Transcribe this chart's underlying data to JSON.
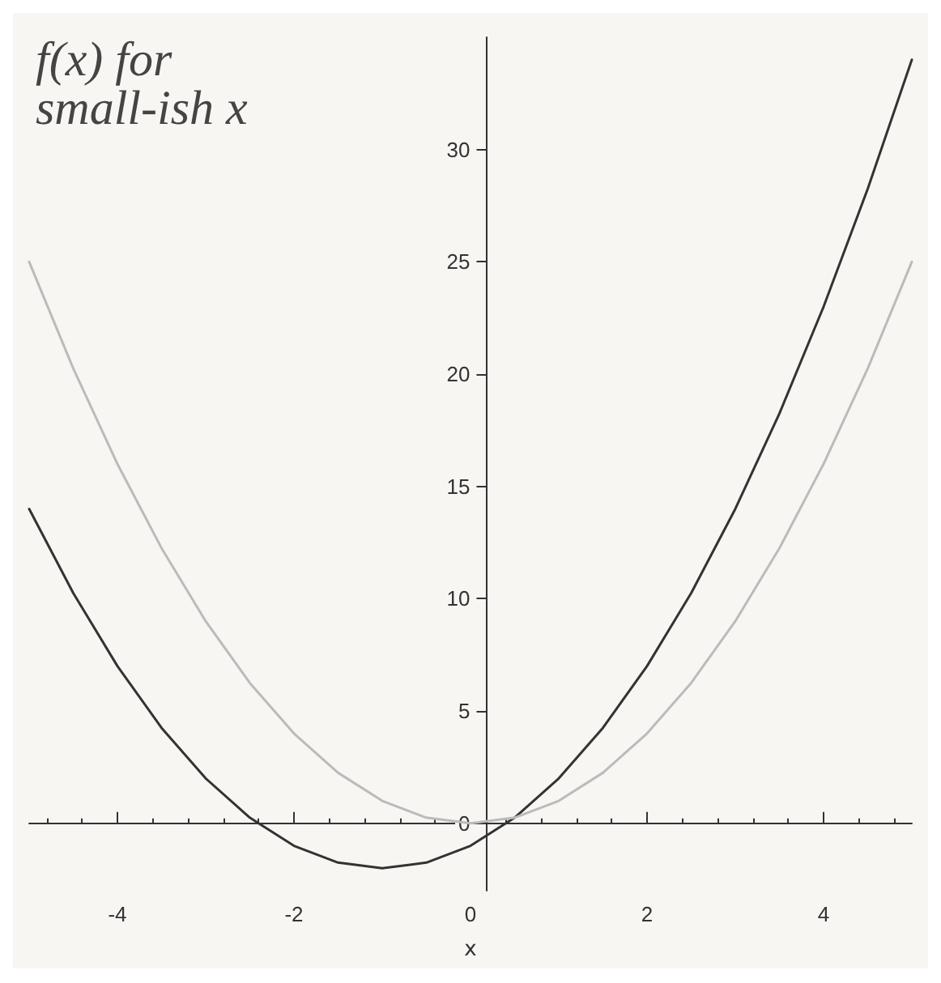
{
  "chart_data": {
    "type": "line",
    "xlabel": "x",
    "annotations": [
      "f(x) for small-ish x"
    ],
    "x": [
      -5,
      -4.5,
      -4,
      -3.5,
      -3,
      -2.5,
      -2,
      -1.5,
      -1,
      -0.5,
      0,
      0.5,
      1,
      1.5,
      2,
      2.5,
      3,
      3.5,
      4,
      4.5,
      5
    ],
    "series": [
      {
        "color": "#333333",
        "values": [
          14,
          10.25,
          7,
          4.25,
          2,
          0.25,
          -1,
          -1.75,
          -2,
          -1.75,
          -1,
          0.25,
          2,
          4.25,
          7,
          10.25,
          14,
          18.25,
          23,
          28.25,
          34
        ]
      },
      {
        "color": "#bbbbbb",
        "values": [
          25,
          20.25,
          16,
          12.25,
          9,
          6.25,
          4,
          2.25,
          1,
          0.25,
          0,
          0.25,
          1,
          2.25,
          4,
          6.25,
          9,
          12.25,
          16,
          20.25,
          25
        ]
      }
    ],
    "xlim": [
      -5,
      5
    ],
    "ylim": [
      -3,
      35
    ],
    "xticks": [
      -4,
      -2,
      0,
      2,
      4
    ],
    "yticks": [
      0,
      5,
      10,
      15,
      20,
      25,
      30
    ],
    "marker": "none",
    "line_style": "solid"
  }
}
